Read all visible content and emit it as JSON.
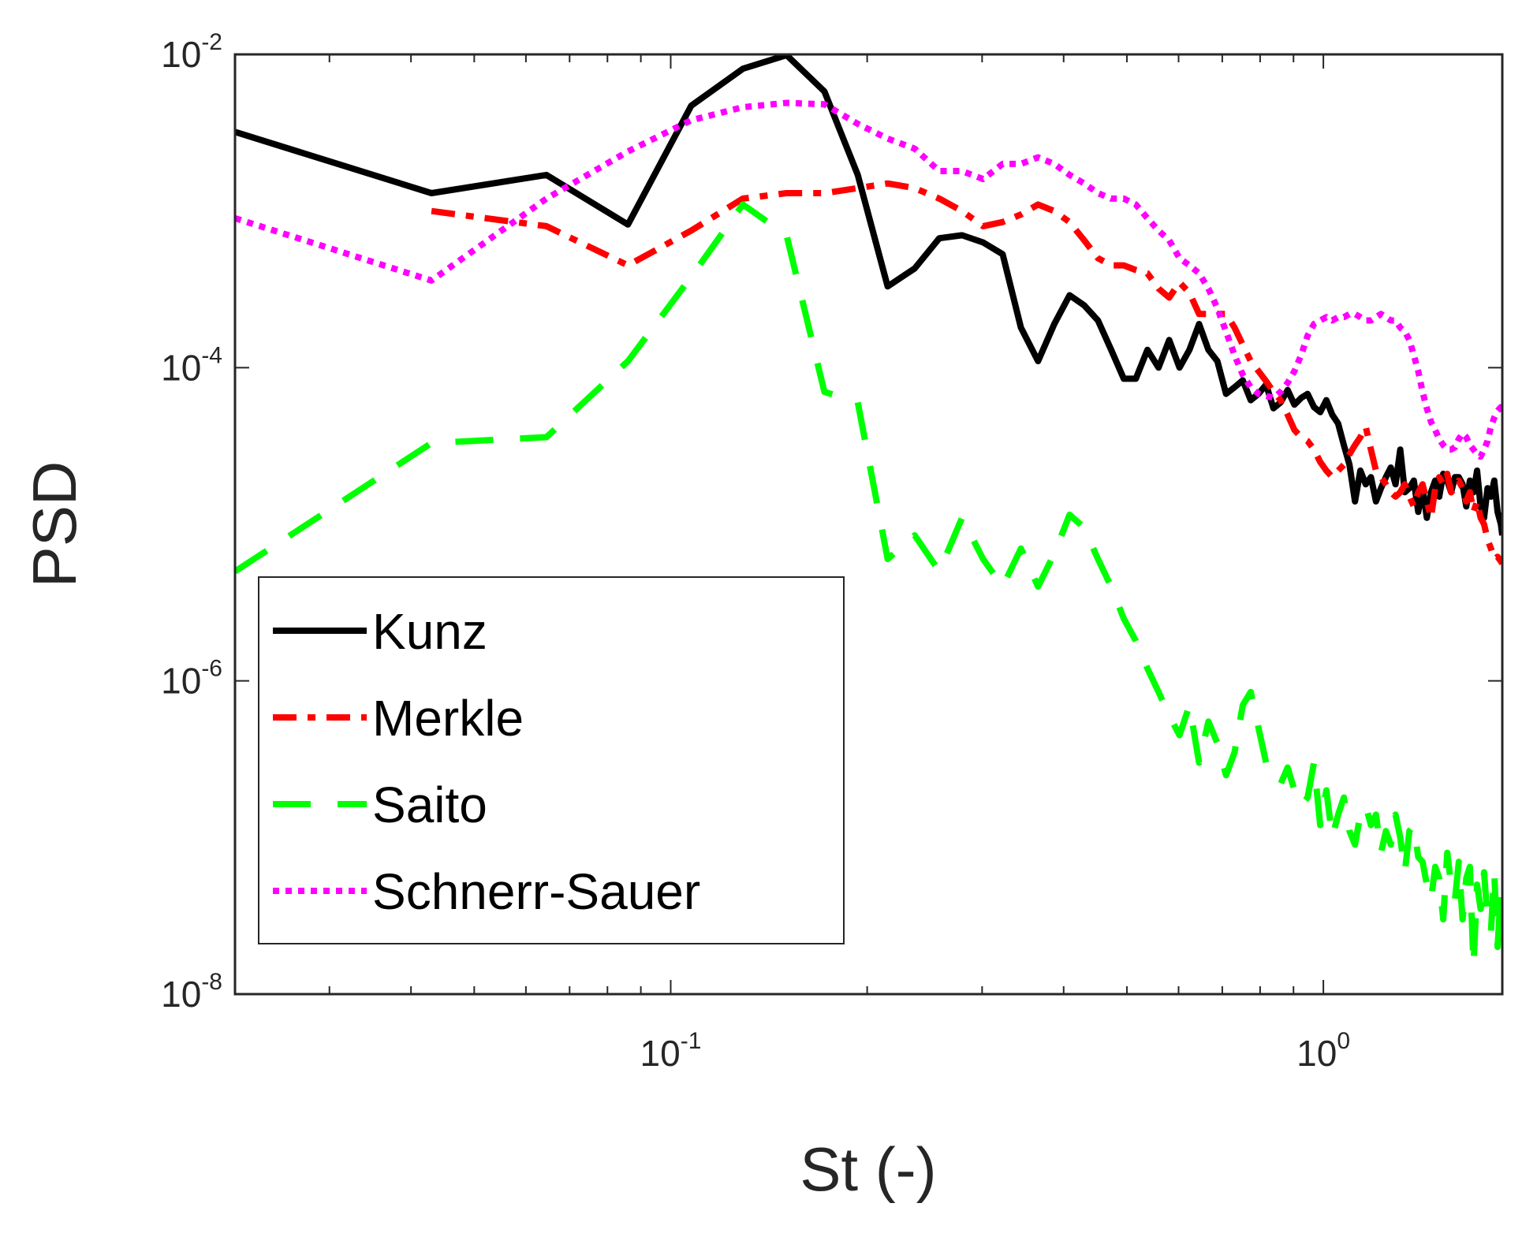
{
  "chart_data": {
    "type": "line",
    "title": "",
    "xlabel": "St (-)",
    "ylabel": "PSD",
    "xscale": "log",
    "yscale": "log",
    "xlim": [
      0.0215,
      1.88
    ],
    "ylim": [
      1e-08,
      0.01
    ],
    "x_ticks": [
      {
        "value": 0.1,
        "base": "10",
        "exp": "-1"
      },
      {
        "value": 1,
        "base": "10",
        "exp": "0"
      }
    ],
    "y_ticks": [
      {
        "value": 1e-08,
        "base": "10",
        "exp": "-8"
      },
      {
        "value": 1e-06,
        "base": "10",
        "exp": "-6"
      },
      {
        "value": 0.0001,
        "base": "10",
        "exp": "-4"
      },
      {
        "value": 0.01,
        "base": "10",
        "exp": "-2"
      }
    ],
    "grid": false,
    "legend_position": "bottom-left",
    "series": [
      {
        "name": "Kunz",
        "color": "#000000",
        "style": "solid",
        "x": [
          0.0215,
          0.043,
          0.0645,
          0.086,
          0.1075,
          0.129,
          0.1505,
          0.172,
          0.1935,
          0.215,
          0.2365,
          0.258,
          0.2795,
          0.301,
          0.3225,
          0.344,
          0.3655,
          0.387,
          0.4085,
          0.43,
          0.4515,
          0.473,
          0.4945,
          0.516,
          0.5375,
          0.559,
          0.5805,
          0.602,
          0.6235,
          0.645,
          0.6665,
          0.688,
          0.7095,
          0.731,
          0.7525,
          0.774,
          0.7955,
          0.817,
          0.8385,
          0.86,
          0.8815,
          0.903,
          0.9245,
          0.946,
          0.9675,
          0.989,
          1.0105,
          1.032,
          1.0535,
          1.075,
          1.0965,
          1.118,
          1.1395,
          1.161,
          1.1825,
          1.204,
          1.2255,
          1.247,
          1.2685,
          1.29,
          1.3115,
          1.333,
          1.3545,
          1.376,
          1.3975,
          1.419,
          1.4405,
          1.462,
          1.4835,
          1.505,
          1.5265,
          1.548,
          1.5695,
          1.591,
          1.6125,
          1.634,
          1.6555,
          1.677,
          1.6985,
          1.72,
          1.7415,
          1.763,
          1.7845,
          1.806,
          1.8275,
          1.849,
          1.8705,
          1.88
        ],
        "y": [
          0.0032,
          0.0013,
          0.0017,
          0.00082,
          0.0047,
          0.0081,
          0.0099,
          0.0058,
          0.0017,
          0.00033,
          0.00043,
          0.00067,
          0.0007,
          0.00063,
          0.00053,
          0.00018,
          0.00011,
          0.00019,
          0.00029,
          0.00025,
          0.0002,
          0.00013,
          8.5e-05,
          8.5e-05,
          0.00013,
          0.0001,
          0.00015,
          0.0001,
          0.00013,
          0.00019,
          0.00013,
          0.00011,
          6.8e-05,
          7.5e-05,
          8.3e-05,
          6.2e-05,
          6.8e-05,
          7.8e-05,
          5.5e-05,
          6e-05,
          7.2e-05,
          5.8e-05,
          6.4e-05,
          6.8e-05,
          5.6e-05,
          5.2e-05,
          6.2e-05,
          5e-05,
          4.4e-05,
          3.2e-05,
          2.4e-05,
          1.4e-05,
          2.2e-05,
          1.8e-05,
          2e-05,
          1.4e-05,
          1.7e-05,
          2e-05,
          2.3e-05,
          1.8e-05,
          3e-05,
          1.6e-05,
          1.7e-05,
          1.9e-05,
          1.2e-05,
          1.7e-05,
          1.1e-05,
          1.6e-05,
          1.9e-05,
          1.5e-05,
          2.1e-05,
          1.9e-05,
          1.6e-05,
          2e-05,
          2e-05,
          1.8e-05,
          1.3e-05,
          1.9e-05,
          1.6e-05,
          2.2e-05,
          1.3e-05,
          1.1e-05,
          1.7e-05,
          1.5e-05,
          1.9e-05,
          1.2e-05,
          1e-05,
          8.5e-06
        ]
      },
      {
        "name": "Merkle",
        "color": "#ff0000",
        "style": "dashdot",
        "x": [
          0.043,
          0.0645,
          0.086,
          0.1075,
          0.129,
          0.1505,
          0.172,
          0.1935,
          0.215,
          0.2365,
          0.258,
          0.2795,
          0.301,
          0.3225,
          0.344,
          0.3655,
          0.387,
          0.4085,
          0.43,
          0.4515,
          0.473,
          0.4945,
          0.516,
          0.5375,
          0.559,
          0.5805,
          0.602,
          0.6235,
          0.645,
          0.6665,
          0.688,
          0.7095,
          0.731,
          0.7525,
          0.774,
          0.7955,
          0.817,
          0.8385,
          0.86,
          0.8815,
          0.903,
          0.9245,
          0.946,
          0.9675,
          0.989,
          1.0105,
          1.032,
          1.0535,
          1.075,
          1.0965,
          1.118,
          1.1395,
          1.161,
          1.1825,
          1.204,
          1.2255,
          1.247,
          1.2685,
          1.29,
          1.3115,
          1.333,
          1.3545,
          1.376,
          1.3975,
          1.419,
          1.4405,
          1.462,
          1.4835,
          1.505,
          1.5265,
          1.548,
          1.5695,
          1.591,
          1.6125,
          1.634,
          1.6555,
          1.677,
          1.6985,
          1.72,
          1.7415,
          1.763,
          1.7845,
          1.806,
          1.8275,
          1.849,
          1.8705,
          1.88
        ],
        "y": [
          0.001,
          0.0008,
          0.00045,
          0.00075,
          0.0012,
          0.0013,
          0.0013,
          0.0014,
          0.0015,
          0.0014,
          0.0012,
          0.001,
          0.0008,
          0.00085,
          0.00095,
          0.0011,
          0.001,
          0.00085,
          0.00065,
          0.0005,
          0.00045,
          0.00045,
          0.00042,
          0.0004,
          0.00032,
          0.00028,
          0.00035,
          0.0003,
          0.00022,
          0.00022,
          0.00022,
          0.00022,
          0.00018,
          0.00014,
          0.00011,
          9.5e-05,
          8.2e-05,
          7e-05,
          6.2e-05,
          5e-05,
          4e-05,
          3.6e-05,
          3.4e-05,
          3e-05,
          2.5e-05,
          2.2e-05,
          2e-05,
          2.2e-05,
          2.4e-05,
          2.8e-05,
          3.2e-05,
          3.6e-05,
          4.2e-05,
          3e-05,
          2.2e-05,
          2e-05,
          1.8e-05,
          1.6e-05,
          1.5e-05,
          1.6e-05,
          1.8e-05,
          1.5e-05,
          1.3e-05,
          1.6e-05,
          1.8e-05,
          1.4e-05,
          1.1e-05,
          1.7e-05,
          2e-05,
          1.8e-05,
          2.1e-05,
          1.6e-05,
          1.7e-05,
          1.9e-05,
          1.7e-05,
          1.4e-05,
          1.6e-05,
          1.2e-05,
          1.4e-05,
          1.1e-05,
          1e-05,
          8e-06,
          7e-06,
          6e-06,
          6.2e-06,
          5.8e-06,
          5.6e-06
        ]
      },
      {
        "name": "Saito",
        "color": "#00ff00",
        "style": "dashed",
        "x": [
          0.0215,
          0.043,
          0.0645,
          0.086,
          0.1075,
          0.129,
          0.1505,
          0.172,
          0.1935,
          0.215,
          0.2365,
          0.258,
          0.2795,
          0.301,
          0.3225,
          0.344,
          0.3655,
          0.387,
          0.4085,
          0.43,
          0.4515,
          0.473,
          0.4945,
          0.516,
          0.5375,
          0.559,
          0.5805,
          0.602,
          0.6235,
          0.645,
          0.6665,
          0.688,
          0.7095,
          0.731,
          0.7525,
          0.774,
          0.7955,
          0.817,
          0.8385,
          0.86,
          0.8815,
          0.903,
          0.9245,
          0.946,
          0.9675,
          0.989,
          1.0105,
          1.032,
          1.0535,
          1.075,
          1.0965,
          1.118,
          1.1395,
          1.161,
          1.1825,
          1.204,
          1.2255,
          1.247,
          1.2685,
          1.29,
          1.3115,
          1.333,
          1.3545,
          1.376,
          1.3975,
          1.419,
          1.4405,
          1.462,
          1.4835,
          1.505,
          1.5265,
          1.548,
          1.5695,
          1.591,
          1.6125,
          1.634,
          1.6555,
          1.677,
          1.6985,
          1.72,
          1.7415,
          1.763,
          1.7845,
          1.806,
          1.8275,
          1.849,
          1.8705,
          1.88
        ],
        "y": [
          5e-06,
          3.3e-05,
          3.6e-05,
          0.00011,
          0.00038,
          0.0011,
          0.0007,
          7e-05,
          6e-05,
          6e-06,
          8.5e-06,
          5e-06,
          1.1e-05,
          6e-06,
          4e-06,
          7e-06,
          4e-06,
          6.5e-06,
          1.15e-05,
          9.5e-06,
          6e-06,
          4e-06,
          2.5e-06,
          1.8e-06,
          1.2e-06,
          8.5e-07,
          6e-07,
          4.5e-07,
          7e-07,
          3e-07,
          5.5e-07,
          4e-07,
          2.5e-07,
          3.5e-07,
          7e-07,
          8.5e-07,
          5e-07,
          3e-07,
          2.5e-07,
          2.2e-07,
          2.8e-07,
          2e-07,
          1.6e-07,
          1.8e-07,
          3e-07,
          1.2e-07,
          2e-07,
          1e-07,
          1.4e-07,
          1.8e-07,
          1.1e-07,
          9e-08,
          1.4e-07,
          1.6e-07,
          1.2e-07,
          1.4e-07,
          8e-08,
          1.1e-07,
          9e-08,
          1.4e-07,
          1e-07,
          6e-08,
          1.1e-07,
          1.2e-07,
          7.5e-08,
          7e-08,
          5e-08,
          4e-08,
          6.5e-08,
          5.5e-08,
          3e-08,
          8e-08,
          5e-08,
          4e-08,
          7e-08,
          3e-08,
          5.5e-08,
          6.5e-08,
          1.5e-08,
          5e-08,
          3.5e-08,
          6e-08,
          3e-08,
          2.5e-08,
          6e-08,
          2e-08,
          4.5e-08,
          1.8e-08
        ]
      },
      {
        "name": "Schnerr-Sauer",
        "color": "#ff00ff",
        "style": "dotted",
        "x": [
          0.0215,
          0.043,
          0.0645,
          0.086,
          0.1075,
          0.129,
          0.1505,
          0.172,
          0.1935,
          0.215,
          0.2365,
          0.258,
          0.2795,
          0.301,
          0.3225,
          0.344,
          0.3655,
          0.387,
          0.4085,
          0.43,
          0.4515,
          0.473,
          0.4945,
          0.516,
          0.5375,
          0.559,
          0.5805,
          0.602,
          0.6235,
          0.645,
          0.6665,
          0.688,
          0.7095,
          0.731,
          0.7525,
          0.774,
          0.7955,
          0.817,
          0.8385,
          0.86,
          0.8815,
          0.903,
          0.9245,
          0.946,
          0.9675,
          0.989,
          1.0105,
          1.032,
          1.0535,
          1.075,
          1.0965,
          1.118,
          1.1395,
          1.161,
          1.1825,
          1.204,
          1.2255,
          1.247,
          1.2685,
          1.29,
          1.3115,
          1.333,
          1.3545,
          1.376,
          1.3975,
          1.419,
          1.4405,
          1.462,
          1.4835,
          1.505,
          1.5265,
          1.548,
          1.5695,
          1.591,
          1.6125,
          1.634,
          1.6555,
          1.677,
          1.6985,
          1.72,
          1.7415,
          1.763,
          1.7845,
          1.806,
          1.8275,
          1.849,
          1.8705,
          1.88
        ],
        "y": [
          0.0009,
          0.00036,
          0.0012,
          0.0024,
          0.0038,
          0.0046,
          0.0049,
          0.0048,
          0.0036,
          0.0029,
          0.0025,
          0.0018,
          0.0018,
          0.0016,
          0.002,
          0.002,
          0.0022,
          0.002,
          0.0017,
          0.0015,
          0.0013,
          0.0012,
          0.0012,
          0.0011,
          0.0009,
          0.00075,
          0.00065,
          0.0005,
          0.00045,
          0.0004,
          0.00032,
          0.00024,
          0.00017,
          0.00012,
          9e-05,
          7.5e-05,
          6.8e-05,
          6.6e-05,
          6.4e-05,
          7e-05,
          8e-05,
          9.5e-05,
          0.00012,
          0.00016,
          0.00019,
          0.0002,
          0.00021,
          0.0002,
          0.00021,
          0.00021,
          0.00022,
          0.00022,
          0.00021,
          0.0002,
          0.0002,
          0.00021,
          0.00022,
          0.00021,
          0.0002,
          0.0002,
          0.00018,
          0.00017,
          0.00015,
          0.00012,
          9.5e-05,
          7e-05,
          5.5e-05,
          4.5e-05,
          4e-05,
          3.5e-05,
          3.2e-05,
          3e-05,
          3e-05,
          3.1e-05,
          3.5e-05,
          3.8e-05,
          3.6e-05,
          3.2e-05,
          3e-05,
          2.8e-05,
          2.7e-05,
          3e-05,
          3.4e-05,
          4.2e-05,
          4.8e-05,
          5.3e-05,
          5.6e-05,
          5.6e-05
        ]
      }
    ]
  }
}
